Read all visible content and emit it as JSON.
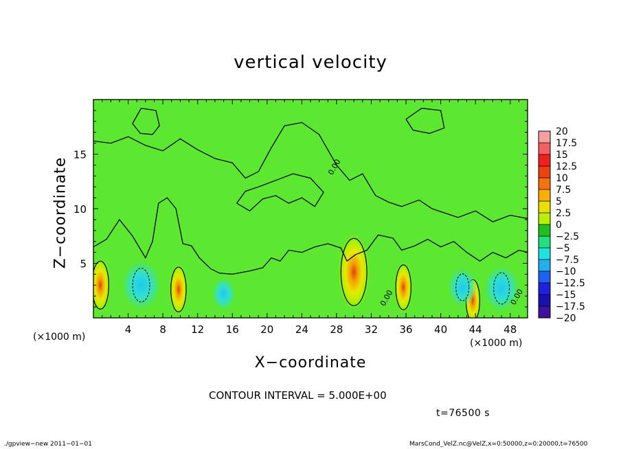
{
  "chart_data": {
    "type": "heatmap",
    "title": "vertical velocity",
    "xlabel": "X−coordinate",
    "ylabel": "Z−coordinate",
    "x_unit_label": "(×1000 m)",
    "y_unit_label": "(×1000 m)",
    "xlim": [
      0,
      50
    ],
    "ylim": [
      0,
      20
    ],
    "x_ticks": [
      4,
      8,
      12,
      16,
      20,
      24,
      28,
      32,
      36,
      40,
      44,
      48
    ],
    "y_ticks": [
      5,
      10,
      15
    ],
    "contour_interval_text": "CONTOUR INTERVAL = 5.000E+00",
    "contour_labels": [
      {
        "x": 28.0,
        "y": 13.7,
        "text": "0.00"
      },
      {
        "x": 34.0,
        "y": 1.7,
        "text": "0.00"
      },
      {
        "x": 49.0,
        "y": 1.8,
        "text": "0.00"
      }
    ],
    "colorbar": {
      "labels": [
        "20",
        "17.5",
        "15",
        "12.5",
        "10",
        "7.5",
        "5",
        "2.5",
        "0",
        "−2.5",
        "−5",
        "−7.5",
        "−10",
        "−12.5",
        "−15",
        "−17.5",
        "−20"
      ],
      "colors": [
        "#f4a0a0",
        "#f46060",
        "#f02020",
        "#f04010",
        "#f47010",
        "#f8b000",
        "#e8e000",
        "#b8f000",
        "#20c020",
        "#20e080",
        "#20e0e0",
        "#20b0f0",
        "#2060f0",
        "#2020e0",
        "#1810b0",
        "#4010a0"
      ]
    },
    "updrafts": [
      {
        "x": 0.8,
        "z": 3.0,
        "peak": 8
      },
      {
        "x": 9.8,
        "z": 2.6,
        "peak": 7
      },
      {
        "x": 30.0,
        "z": 4.2,
        "peak": 14
      },
      {
        "x": 35.7,
        "z": 2.8,
        "peak": 7
      },
      {
        "x": 43.7,
        "z": 1.6,
        "peak": 6
      }
    ],
    "downdrafts": [
      {
        "x": 5.5,
        "z": 3.0,
        "peak": -8
      },
      {
        "x": 15.0,
        "z": 2.2,
        "peak": -3
      },
      {
        "x": 42.5,
        "z": 2.8,
        "peak": -5
      },
      {
        "x": 47.0,
        "z": 2.7,
        "peak": -7
      }
    ]
  },
  "time_label": "t=76500 s",
  "footer": {
    "left": "./gpview−new  2011−01−01",
    "right": "MarsCond_VelZ.nc@VelZ,x=0:50000,z=0:20000,t=76500"
  }
}
